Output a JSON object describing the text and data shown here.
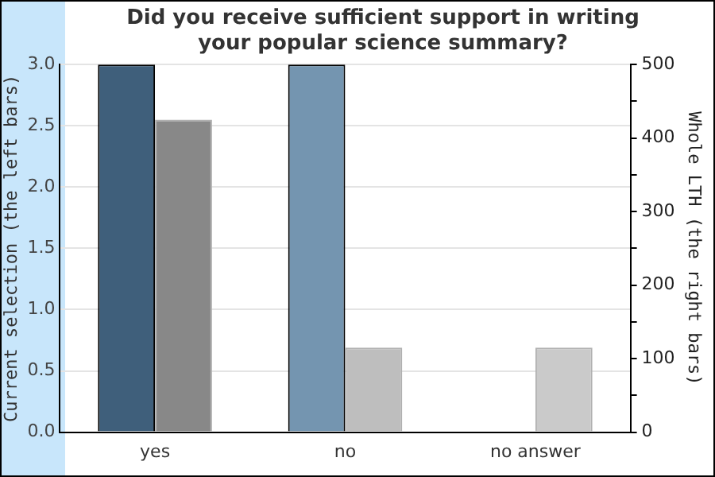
{
  "chart_data": {
    "type": "bar",
    "title": "Did you receive sufficient support in writing your popular science summary?",
    "ylabel": "Current selection (the left bars)",
    "y2label": "Whole LTH (the right bars)",
    "categories": [
      "yes",
      "no",
      "no answer"
    ],
    "series": [
      {
        "colors": [
          "#3f5f7b",
          "#7495b0",
          "#3f5f7b"
        ],
        "values": [
          3,
          3,
          0
        ]
      },
      {
        "colors": [
          "#888888",
          "#bebebe",
          "#cacaca"
        ],
        "values": [
          425,
          115,
          115
        ],
        "axis": "y2"
      }
    ],
    "ylim": [
      0,
      3
    ],
    "yticks": [
      {
        "value": 0,
        "label": "0.0"
      },
      {
        "value": 0.5,
        "label": "0.5"
      },
      {
        "value": 1,
        "label": "1.0"
      },
      {
        "value": 1.5,
        "label": "1.5"
      },
      {
        "value": 2,
        "label": "2.0"
      },
      {
        "value": 2.5,
        "label": "2.5"
      },
      {
        "value": 3,
        "label": "3.0"
      }
    ],
    "y2lim": [
      0,
      500
    ],
    "y2ticks": [
      0,
      {
        "value": 50,
        "label": null
      },
      100,
      {
        "value": 150,
        "label": null
      },
      200,
      {
        "value": 250,
        "label": null
      },
      300,
      {
        "value": 350,
        "label": null
      },
      400,
      {
        "value": 450,
        "label": null
      },
      500
    ],
    "grid": "y",
    "legend": false
  }
}
